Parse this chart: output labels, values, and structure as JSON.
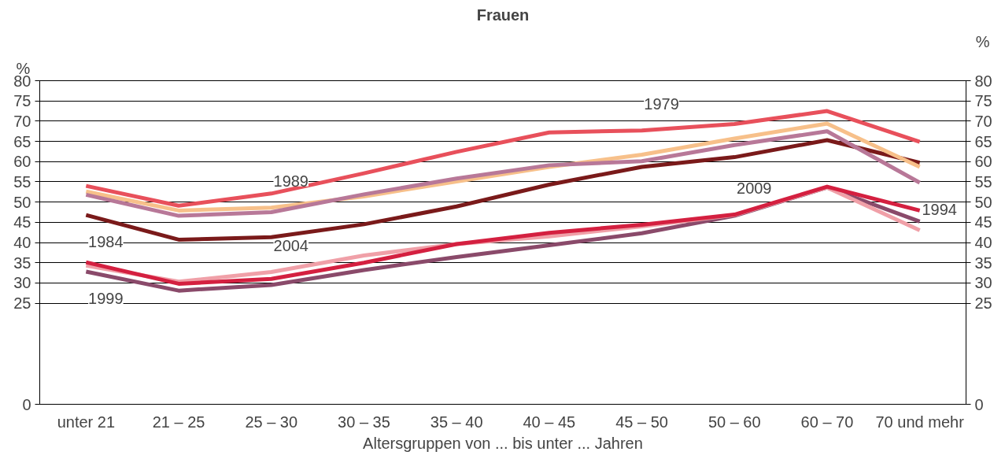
{
  "chart_data": {
    "type": "line",
    "title": "Frauen",
    "xlabel": "Altersgruppen von ... bis unter ... Jahren",
    "ylabel": "%",
    "y2label": "%",
    "categories": [
      "unter 21",
      "21 – 25",
      "25 – 30",
      "30 – 35",
      "35 – 40",
      "40 – 45",
      "45 – 50",
      "50 – 60",
      "60 – 70",
      "70 und mehr"
    ],
    "series": [
      {
        "color": "#e8505b",
        "values": [
          54.0,
          49.1,
          52.1,
          57.1,
          62.4,
          67.2,
          67.7,
          69.3,
          72.5,
          64.9
        ]
      },
      {
        "color": "#7a1a1a",
        "values": [
          46.8,
          40.7,
          41.3,
          44.5,
          48.9,
          54.3,
          58.7,
          61.1,
          65.3,
          59.7
        ]
      },
      {
        "color": "#f7c08a",
        "values": [
          52.6,
          47.9,
          48.6,
          51.4,
          55.1,
          58.7,
          61.7,
          65.7,
          69.4,
          58.7
        ]
      },
      {
        "color": "#b87898",
        "values": [
          51.8,
          46.6,
          47.5,
          51.9,
          55.8,
          59.1,
          60.1,
          64.1,
          67.5,
          54.8
        ]
      },
      {
        "color": "#8a4a6a",
        "values": [
          32.8,
          28.1,
          29.5,
          33.2,
          36.4,
          39.3,
          42.3,
          46.6,
          53.6,
          45.2
        ]
      },
      {
        "color": "#f0a0a8",
        "values": [
          34.3,
          30.3,
          32.7,
          36.8,
          39.6,
          41.5,
          44.0,
          46.8,
          53.6,
          43.0
        ]
      },
      {
        "color": "#d42040",
        "values": [
          35.1,
          29.8,
          31.0,
          35.0,
          39.6,
          42.4,
          44.4,
          46.9,
          53.8,
          47.9
        ]
      }
    ],
    "ylim": [
      0,
      80
    ],
    "yticks": [
      0,
      25,
      30,
      35,
      40,
      45,
      50,
      55,
      60,
      65,
      70,
      75,
      80
    ],
    "y2lim": [
      0,
      80
    ],
    "y2ticks": [
      0,
      25,
      30,
      35,
      40,
      45,
      50,
      55,
      60,
      65,
      70,
      75,
      80
    ],
    "grid": "y",
    "marker": "none",
    "line_style": "solid",
    "annotations": [
      {
        "text": "1979",
        "x": "45 – 50",
        "y": 67.7
      },
      {
        "text": "1989",
        "x": "25 – 30",
        "y": 48.6
      },
      {
        "text": "1984",
        "x": "unter 21",
        "y": 46.8
      },
      {
        "text": "1994",
        "x": "70 und mehr",
        "y": 54.8
      },
      {
        "text": "2009",
        "x": "50 – 60",
        "y": 46.9
      },
      {
        "text": "2004",
        "x": "25 – 30",
        "y": 32.7
      },
      {
        "text": "1999",
        "x": "unter 21",
        "y": 32.8
      }
    ]
  }
}
